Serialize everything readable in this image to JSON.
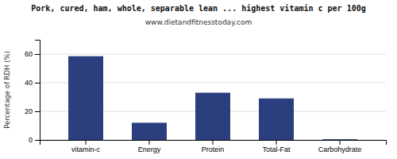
{
  "chart_data": {
    "type": "bar",
    "title": "Pork, cured, ham, whole, separable lean ... highest vitamin c per 100g",
    "subtitle": "www.dietandfitnesstoday.com",
    "categories": [
      "vitamin-c",
      "Energy",
      "Protein",
      "Total-Fat",
      "Carbohydrate"
    ],
    "values": [
      58.5,
      12.0,
      33.0,
      29.0,
      0.5
    ],
    "color": "#2b3f7e",
    "ylabel": "Percentage of RDH (%)",
    "ylim": [
      0,
      70
    ],
    "yticks": [
      0,
      20,
      40,
      60
    ],
    "grid": true
  }
}
